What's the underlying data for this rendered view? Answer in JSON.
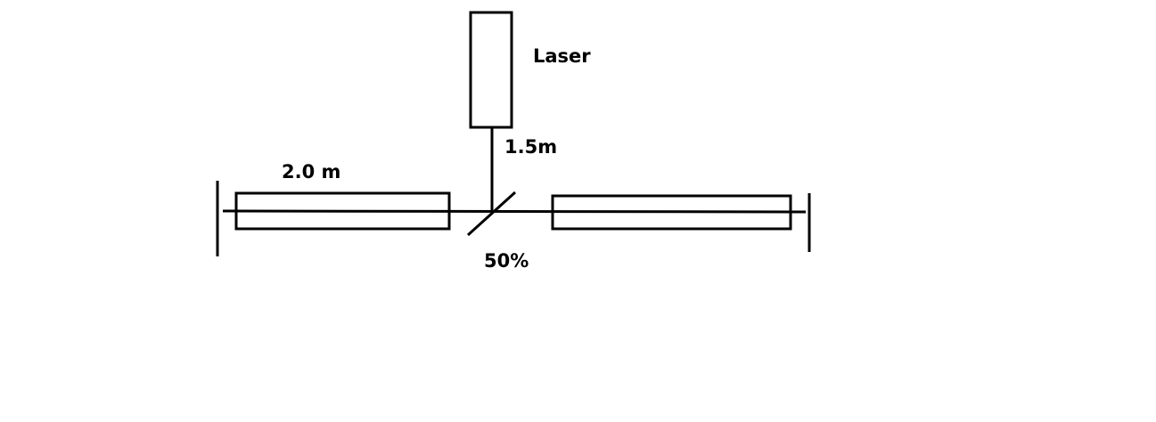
{
  "diagram": {
    "labels": {
      "laser": "Laser",
      "laser_distance": "1.5m",
      "arm_length": "2.0 m",
      "splitter": "50%"
    },
    "colors": {
      "stroke": "#000000",
      "background": "#ffffff"
    }
  }
}
